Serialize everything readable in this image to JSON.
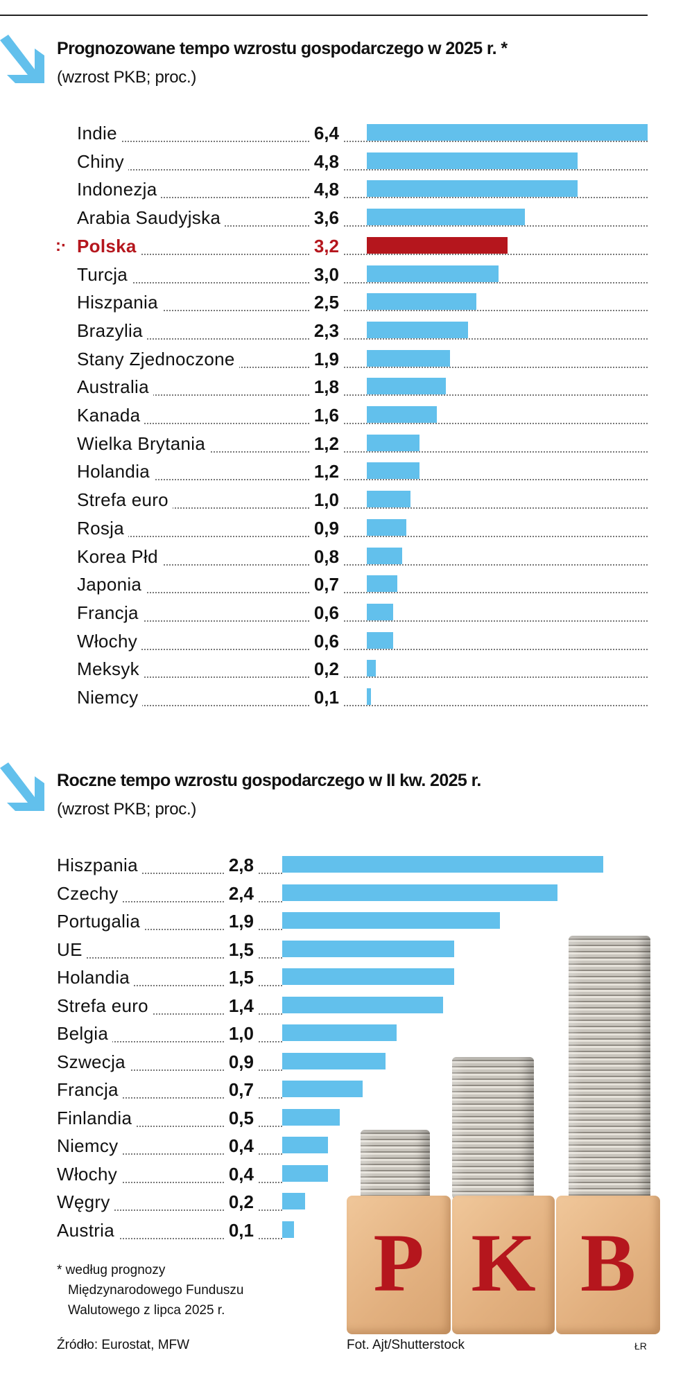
{
  "chart_data": [
    {
      "type": "bar",
      "orientation": "horizontal",
      "title": "Prognozowane tempo wzrostu gospodarczego w 2025 r. *",
      "subtitle": "(wzrost PKB; proc.)",
      "categories": [
        "Indie",
        "Chiny",
        "Indonezja",
        "Arabia Saudyjska",
        "Polska",
        "Turcja",
        "Hiszpania",
        "Brazylia",
        "Stany Zjednoczone",
        "Australia",
        "Kanada",
        "Wielka Brytania",
        "Holandia",
        "Strefa euro",
        "Rosja",
        "Korea Płd",
        "Japonia",
        "Francja",
        "Włochy",
        "Meksyk",
        "Niemcy"
      ],
      "values": [
        6.4,
        4.8,
        4.8,
        3.6,
        3.2,
        3.0,
        2.5,
        2.3,
        1.9,
        1.8,
        1.6,
        1.2,
        1.2,
        1.0,
        0.9,
        0.8,
        0.7,
        0.6,
        0.6,
        0.2,
        0.1
      ],
      "value_labels": [
        "6,4",
        "4,8",
        "4,8",
        "3,6",
        "3,2",
        "3,0",
        "2,5",
        "2,3",
        "1,9",
        "1,8",
        "1,6",
        "1,2",
        "1,2",
        "1,0",
        "0,9",
        "0,8",
        "0,7",
        "0,6",
        "0,6",
        "0,2",
        "0,1"
      ],
      "highlight": "Polska",
      "highlight_marker": ":·",
      "xlim": [
        0,
        6.4
      ],
      "grid": false,
      "colors": {
        "bar": "#62c0ec",
        "highlight": "#b5161d"
      }
    },
    {
      "type": "bar",
      "orientation": "horizontal",
      "title": "Roczne tempo wzrostu gospodarczego w II kw. 2025 r.",
      "subtitle": "(wzrost PKB; proc.)",
      "categories": [
        "Hiszpania",
        "Czechy",
        "Portugalia",
        "UE",
        "Holandia",
        "Strefa euro",
        "Belgia",
        "Szwecja",
        "Francja",
        "Finlandia",
        "Niemcy",
        "Włochy",
        "Węgry",
        "Austria"
      ],
      "values": [
        2.8,
        2.4,
        1.9,
        1.5,
        1.5,
        1.4,
        1.0,
        0.9,
        0.7,
        0.5,
        0.4,
        0.4,
        0.2,
        0.1
      ],
      "value_labels": [
        "2,8",
        "2,4",
        "1,9",
        "1,5",
        "1,5",
        "1,4",
        "1,0",
        "0,9",
        "0,7",
        "0,5",
        "0,4",
        "0,4",
        "0,2",
        "0,1"
      ],
      "xlim": [
        0,
        2.8
      ],
      "grid": false,
      "colors": {
        "bar": "#62c0ec"
      }
    }
  ],
  "footnote": [
    "* według prognozy",
    "Międzynarodowego Funduszu",
    "Walutowego z lipca 2025 r."
  ],
  "source": "Źródło: Eurostat, MFW",
  "photo_credit": "Fot. Ajt/Shutterstock",
  "author": "ŁR",
  "photo": {
    "letters": [
      "P",
      "K",
      "B"
    ]
  },
  "colors": {
    "accent": "#62c0ec",
    "highlight": "#b5161d"
  }
}
